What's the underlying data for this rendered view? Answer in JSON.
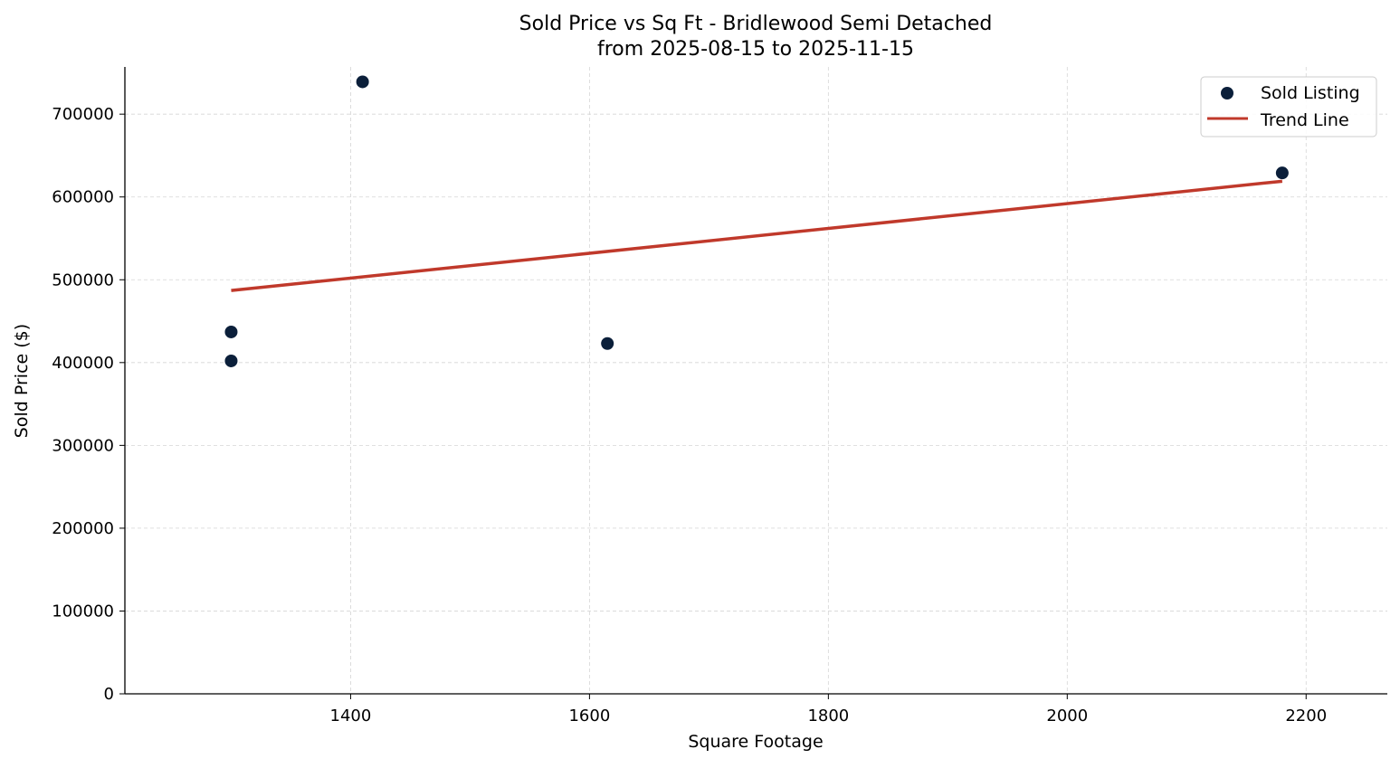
{
  "chart_data": {
    "type": "scatter",
    "title": "Sold Price vs Sq Ft - Bridlewood Semi Detached",
    "subtitle": "from 2025-08-15 to 2025-11-15",
    "xlabel": "Square Footage",
    "ylabel": "Sold Price ($)",
    "xlim": [
      1211,
      2268
    ],
    "ylim": [
      0,
      757000
    ],
    "xticks": [
      1400,
      1600,
      1800,
      2000,
      2200
    ],
    "yticks": [
      0,
      100000,
      200000,
      300000,
      400000,
      500000,
      600000,
      700000
    ],
    "grid": true,
    "legend_position": "top-right",
    "series": [
      {
        "name": "Sold Listing",
        "kind": "scatter",
        "color": "#0b1f3a",
        "points": [
          {
            "x": 1300,
            "y": 437000
          },
          {
            "x": 1300,
            "y": 402000
          },
          {
            "x": 1410,
            "y": 739000
          },
          {
            "x": 1615,
            "y": 423000
          },
          {
            "x": 2180,
            "y": 629000
          }
        ]
      },
      {
        "name": "Trend Line",
        "kind": "line",
        "color": "#c0392b",
        "points": [
          {
            "x": 1300,
            "y": 487000
          },
          {
            "x": 2180,
            "y": 619000
          }
        ]
      }
    ]
  }
}
